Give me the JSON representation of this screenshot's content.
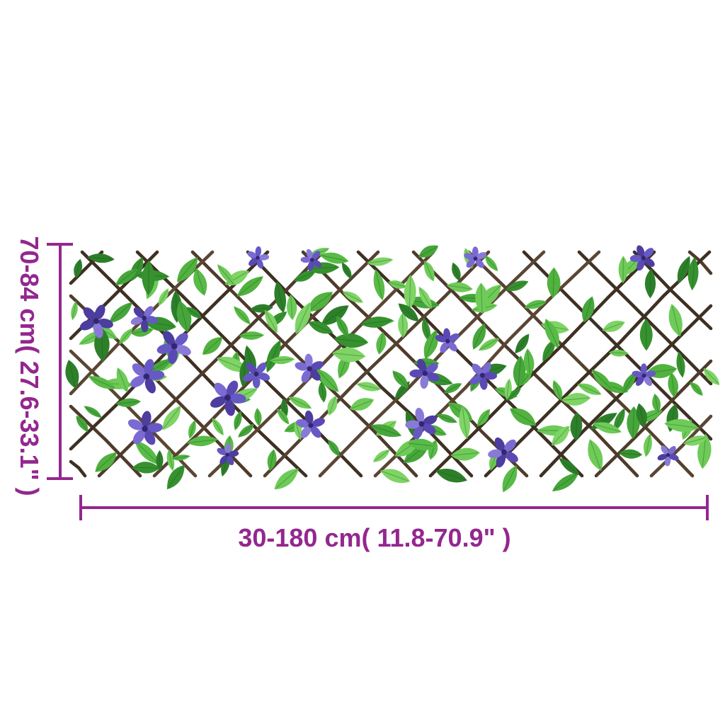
{
  "page": {
    "background": "#ffffff"
  },
  "dimension_annotations": {
    "accent_color": "#93278F",
    "height": {
      "label": "70-84 cm( 27.6-33.1\" )"
    },
    "width": {
      "label": "30-180 cm( 11.8-70.9\" )"
    }
  },
  "product_image": {
    "description": "expandable-willow-trellis-with-artificial-green-ivy-leaves-and-purple-flowers",
    "flower_count": 21,
    "colors": {
      "lattice_wood": [
        "#4e3b2b",
        "#5b4634",
        "#3e3022",
        "#55412f"
      ],
      "leaf_greens": [
        "#46a63b",
        "#58bb47",
        "#6ecb58",
        "#36912f",
        "#2d7f2a",
        "#51b23f",
        "#7ed465"
      ],
      "leaf_vein": "rgba(20,80,20,0.35)",
      "flower_purples": [
        "#6659c4",
        "#5a49b4",
        "#7a6ad2",
        "#4c3d9e",
        "#8a7ad8"
      ],
      "flower_center": "#32276e"
    }
  }
}
